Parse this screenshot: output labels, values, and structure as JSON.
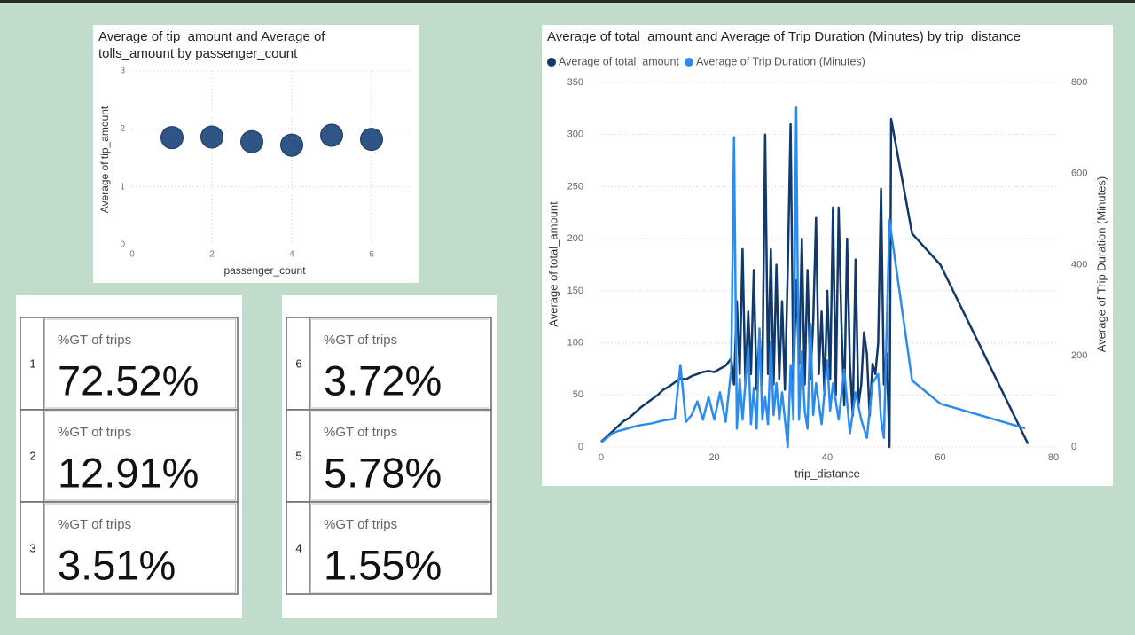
{
  "chart_data": [
    {
      "type": "scatter",
      "title": "Average of tip_amount and Average of tolls_amount by passenger_count",
      "x_label": "passenger_count",
      "y_label": "Average of tip_amount",
      "x": [
        1,
        2,
        3,
        4,
        5,
        6
      ],
      "values": [
        1.85,
        1.86,
        1.78,
        1.72,
        1.89,
        1.82
      ],
      "color": "#2e5586",
      "xlim": [
        0,
        7
      ],
      "xticks": [
        0,
        2,
        4,
        6
      ],
      "ylim": [
        0,
        3
      ],
      "yticks": [
        0,
        1,
        2,
        3
      ],
      "grid": true
    },
    {
      "type": "line",
      "title": "Average of total_amount and Average of Trip Duration (Minutes) by trip_distance",
      "x_label": "trip_distance",
      "y_label": "Average of total_amount",
      "y2_label": "Average of Trip Duration (Minutes)",
      "xlim": [
        0,
        81
      ],
      "xticks": [
        0,
        20,
        40,
        60,
        80
      ],
      "ylim": [
        0,
        350
      ],
      "yticks": [
        0,
        50,
        100,
        150,
        200,
        250,
        300,
        350
      ],
      "y2lim": [
        0,
        800
      ],
      "y2ticks": [
        0,
        200,
        400,
        600,
        800
      ],
      "grid": true,
      "legend": "top-left",
      "series": [
        {
          "name": "Average of total_amount",
          "color": "#12396b",
          "x": [
            0,
            1,
            2,
            3,
            4,
            5,
            6,
            7,
            8,
            9,
            10,
            11,
            12,
            13,
            14,
            15,
            16,
            17,
            18,
            19,
            20,
            21,
            22,
            23,
            23.5,
            24,
            24.5,
            25,
            25.5,
            26,
            26.5,
            27,
            27.5,
            28,
            28.5,
            29,
            29.5,
            30,
            30.5,
            31,
            31.5,
            32,
            32.5,
            33,
            33.5,
            34,
            34.5,
            35,
            35.5,
            36,
            36.5,
            37,
            37.5,
            38,
            38.5,
            39,
            39.5,
            40,
            40.5,
            41,
            41.5,
            42,
            42.5,
            43,
            43.5,
            44,
            44.5,
            45,
            45.5,
            46,
            46.5,
            47,
            47.5,
            48,
            48.5,
            49,
            49.5,
            50,
            50.5,
            51,
            51.3,
            55,
            60,
            75.5
          ],
          "values": [
            5,
            10,
            15,
            20,
            25,
            28,
            33,
            38,
            42,
            46,
            50,
            55,
            58,
            62,
            66,
            65,
            68,
            70,
            72,
            73,
            72,
            75,
            78,
            85,
            60,
            140,
            70,
            190,
            60,
            130,
            70,
            170,
            55,
            110,
            60,
            300,
            70,
            190,
            60,
            175,
            65,
            140,
            55,
            170,
            310,
            60,
            160,
            80,
            200,
            60,
            170,
            65,
            120,
            220,
            70,
            130,
            50,
            150,
            65,
            230,
            50,
            230,
            120,
            40,
            200,
            80,
            30,
            180,
            40,
            60,
            110,
            90,
            30,
            80,
            70,
            100,
            248,
            60,
            90,
            0,
            315,
            205,
            175,
            3
          ]
        },
        {
          "name": "Average of Trip Duration (Minutes)",
          "color": "#2b8cf0",
          "axis": "y2",
          "x": [
            0,
            1,
            2,
            3,
            4,
            5,
            6,
            7,
            8,
            9,
            10,
            11,
            12,
            13,
            14,
            15,
            16,
            17,
            18,
            19,
            20,
            21,
            22,
            23,
            23.5,
            24,
            24.5,
            25,
            26,
            26.5,
            27,
            27.5,
            28,
            28.5,
            29,
            29.5,
            30,
            30.5,
            31,
            31.5,
            32,
            33,
            33.5,
            34,
            34.5,
            35,
            35.5,
            36,
            36.5,
            37,
            37.5,
            38,
            39,
            40,
            40.5,
            41,
            42,
            43,
            44,
            45,
            46,
            47,
            48,
            49,
            49.5,
            50,
            51,
            55,
            60,
            75
          ],
          "values": [
            10,
            20,
            30,
            35,
            38,
            42,
            45,
            48,
            50,
            52,
            55,
            58,
            60,
            62,
            180,
            55,
            70,
            100,
            60,
            110,
            60,
            120,
            55,
            170,
            680,
            40,
            150,
            60,
            220,
            50,
            130,
            40,
            260,
            60,
            110,
            50,
            230,
            70,
            140,
            60,
            120,
            0,
            180,
            60,
            745,
            60,
            210,
            80,
            40,
            270,
            70,
            140,
            50,
            190,
            80,
            140,
            60,
            170,
            30,
            120,
            60,
            20,
            140,
            160,
            60,
            20,
            498,
            146,
            95,
            41
          ]
        }
      ]
    }
  ],
  "cards": [
    {
      "index": "1",
      "label": "%GT of trips",
      "value": "72.52%"
    },
    {
      "index": "2",
      "label": "%GT of trips",
      "value": "12.91%"
    },
    {
      "index": "3",
      "label": "%GT of trips",
      "value": "3.51%"
    },
    {
      "index": "6",
      "label": "%GT of trips",
      "value": "3.72%"
    },
    {
      "index": "5",
      "label": "%GT of trips",
      "value": "5.78%"
    },
    {
      "index": "4",
      "label": "%GT of trips",
      "value": "1.55%"
    }
  ]
}
